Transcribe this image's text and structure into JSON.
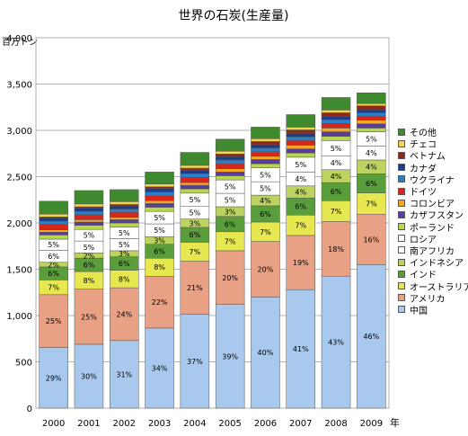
{
  "chart_data": {
    "type": "bar",
    "stacked": true,
    "title": "世界の石炭(生産量)",
    "ylabel": "百万トン",
    "xlabel": "年",
    "ylim": [
      0,
      4000
    ],
    "yticks": [
      "0",
      "500",
      "1,000",
      "1,500",
      "2,000",
      "2,500",
      "3,000",
      "3,500",
      "4,000"
    ],
    "grid": true,
    "legend_position": "right",
    "categories": [
      "2000",
      "2001",
      "2002",
      "2003",
      "2004",
      "2005",
      "2006",
      "2007",
      "2008",
      "2009"
    ],
    "series": [
      {
        "name": "中国",
        "color": "#a9c8ee",
        "values": [
          655,
          690,
          730,
          865,
          1012,
          1120,
          1200,
          1280,
          1425,
          1550
        ],
        "labels": [
          "29%",
          "30%",
          "31%",
          "34%",
          "37%",
          "39%",
          "40%",
          "41%",
          "43%",
          "46%"
        ]
      },
      {
        "name": "アメリカ",
        "color": "#e8a184",
        "values": [
          570,
          595,
          570,
          560,
          575,
          580,
          600,
          585,
          590,
          545
        ],
        "labels": [
          "25%",
          "25%",
          "24%",
          "22%",
          "21%",
          "20%",
          "20%",
          "19%",
          "18%",
          "16%"
        ]
      },
      {
        "name": "オーストラリア",
        "color": "#e7e74f",
        "values": [
          160,
          190,
          190,
          195,
          205,
          205,
          210,
          220,
          225,
          230
        ],
        "labels": [
          "7%",
          "8%",
          "8%",
          "8%",
          "7%",
          "7%",
          "7%",
          "7%",
          "7%",
          "7%"
        ]
      },
      {
        "name": "インド",
        "color": "#5a9e3c",
        "values": [
          140,
          145,
          145,
          150,
          160,
          165,
          175,
          185,
          195,
          205
        ],
        "labels": [
          "6%",
          "6%",
          "6%",
          "6%",
          "6%",
          "6%",
          "6%",
          "6%",
          "6%",
          "6%"
        ]
      },
      {
        "name": "インドネシア",
        "color": "#bcd35f",
        "values": [
          50,
          55,
          65,
          80,
          90,
          105,
          115,
          130,
          140,
          150
        ],
        "labels": [
          "2%",
          "2%",
          "3%",
          "3%",
          "3%",
          "3%",
          "4%",
          "4%",
          "4%",
          "4%"
        ]
      },
      {
        "name": "南アフリカ",
        "color": "#ffffff",
        "values": [
          130,
          130,
          130,
          140,
          140,
          145,
          145,
          150,
          150,
          150
        ],
        "labels": [
          "6%",
          "5%",
          "5%",
          "5%",
          "5%",
          "5%",
          "5%",
          "4%",
          "4%",
          "4%"
        ]
      },
      {
        "name": "ロシア",
        "color": "#ffffff",
        "values": [
          120,
          125,
          125,
          135,
          140,
          145,
          150,
          160,
          165,
          155
        ],
        "labels": [
          "5%",
          "5%",
          "5%",
          "5%",
          "5%",
          "5%",
          "5%",
          "5%",
          "5%",
          "5%"
        ]
      },
      {
        "name": "ポーランド",
        "color": "#b6d84a",
        "values": [
          45,
          45,
          45,
          45,
          45,
          45,
          45,
          45,
          45,
          40
        ]
      },
      {
        "name": "カザフスタン",
        "color": "#5a3d9c",
        "values": [
          30,
          35,
          35,
          40,
          40,
          40,
          45,
          45,
          50,
          45
        ]
      },
      {
        "name": "コロンビア",
        "color": "#f5a623",
        "values": [
          25,
          25,
          25,
          30,
          30,
          35,
          35,
          40,
          40,
          40
        ]
      },
      {
        "name": "ドイツ",
        "color": "#d9261c",
        "values": [
          60,
          55,
          55,
          55,
          55,
          55,
          50,
          50,
          50,
          45
        ]
      },
      {
        "name": "ウクライナ",
        "color": "#2a7fc9",
        "values": [
          35,
          35,
          35,
          40,
          40,
          40,
          40,
          40,
          40,
          35
        ]
      },
      {
        "name": "カナダ",
        "color": "#1c3c8c",
        "values": [
          35,
          35,
          35,
          35,
          35,
          35,
          35,
          35,
          35,
          30
        ]
      },
      {
        "name": "ベトナム",
        "color": "#8b2a1a",
        "values": [
          10,
          15,
          15,
          20,
          25,
          30,
          35,
          40,
          40,
          45
        ]
      },
      {
        "name": "チェコ",
        "color": "#f0d84a",
        "values": [
          30,
          30,
          30,
          30,
          30,
          30,
          30,
          30,
          30,
          25
        ]
      },
      {
        "name": "その他",
        "color": "#3f8a2f",
        "values": [
          140,
          145,
          130,
          130,
          140,
          130,
          125,
          135,
          135,
          115
        ]
      }
    ]
  }
}
